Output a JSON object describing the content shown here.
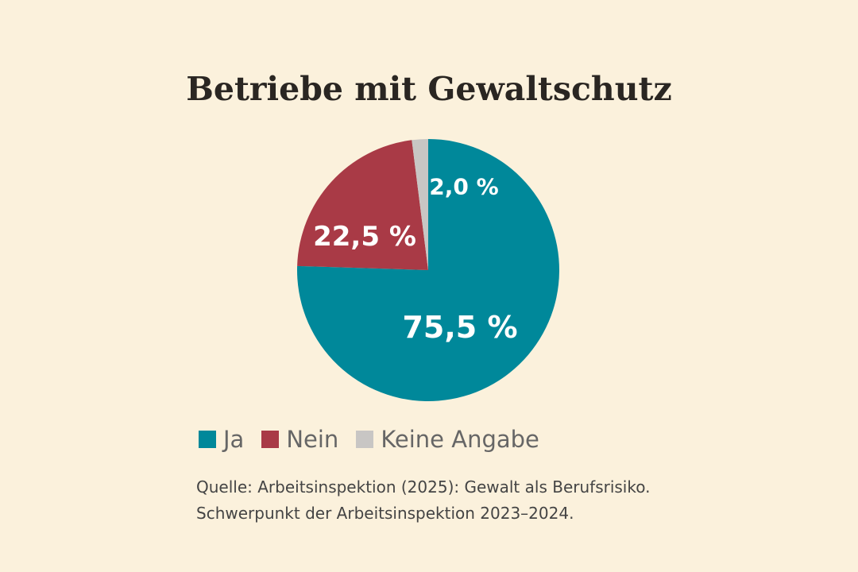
{
  "chart_data": {
    "type": "pie",
    "title": "Betriebe mit Gewaltschutz",
    "start": "top",
    "direction": "clockwise",
    "slices": [
      {
        "name": "Ja",
        "value": 75.5,
        "label": "75,5 %",
        "color": "#00889a"
      },
      {
        "name": "Nein",
        "value": 22.5,
        "label": "22,5 %",
        "color": "#a93a46"
      },
      {
        "name": "Keine Angabe",
        "value": 2.0,
        "label": "2,0 %",
        "color": "#c8c6c4"
      }
    ],
    "legend_placement": "bottom-left"
  },
  "source": {
    "line1": "Quelle: Arbeitsinspektion (2025): Gewalt als Berufsrisiko.",
    "line2": "Schwerpunkt der Arbeitsinspektion 2023–2024."
  }
}
